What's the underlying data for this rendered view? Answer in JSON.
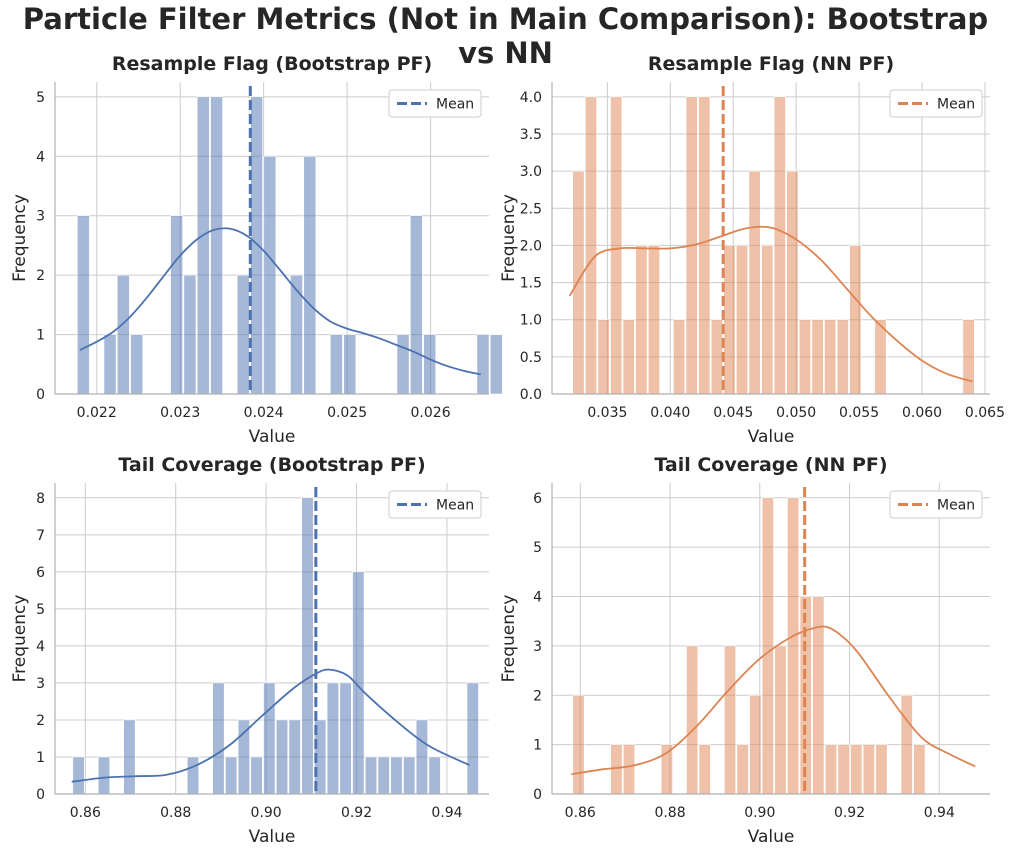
{
  "figure": {
    "title": "Particle Filter Metrics (Not in Main Comparison): Bootstrap vs NN"
  },
  "colors": {
    "blue": "#4C72B0",
    "orange": "#DD8452",
    "grid": "#cccccc",
    "axis": "#b0b0b0"
  },
  "chart_data": [
    {
      "type": "bar",
      "title": "Resample Flag (Bootstrap PF)",
      "xlabel": "Value",
      "ylabel": "Frequency",
      "color": "#4C72B0",
      "xlim": [
        0.0215,
        0.0267
      ],
      "ylim": [
        0,
        5.25
      ],
      "xticks": [
        0.022,
        0.023,
        0.024,
        0.025,
        0.026
      ],
      "xtick_labels": [
        "0.022",
        "0.023",
        "0.024",
        "0.025",
        "0.026"
      ],
      "yticks": [
        0,
        1,
        2,
        3,
        4,
        5
      ],
      "ytick_labels": [
        "0",
        "1",
        "2",
        "3",
        "4",
        "5"
      ],
      "bins": {
        "start": 0.02176,
        "width": 0.0001596,
        "counts": [
          3,
          0,
          1,
          2,
          1,
          0,
          0,
          3,
          2,
          5,
          5,
          0,
          2,
          5,
          4,
          0,
          2,
          4,
          0,
          1,
          1,
          0,
          0,
          0,
          1,
          3,
          1,
          0,
          0,
          0,
          1,
          1
        ]
      },
      "kde": {
        "x": [
          0.0218,
          0.022,
          0.0222,
          0.0224,
          0.0226,
          0.0228,
          0.023,
          0.0232,
          0.0234,
          0.0236,
          0.0238,
          0.024,
          0.0242,
          0.0244,
          0.0246,
          0.0248,
          0.025,
          0.0252,
          0.0254,
          0.0256,
          0.0258,
          0.026,
          0.0262,
          0.0264,
          0.0266
        ],
        "y": [
          0.74,
          0.88,
          1.05,
          1.3,
          1.62,
          1.98,
          2.33,
          2.6,
          2.76,
          2.78,
          2.66,
          2.41,
          2.08,
          1.74,
          1.44,
          1.22,
          1.1,
          1.02,
          0.93,
          0.82,
          0.71,
          0.58,
          0.47,
          0.39,
          0.33
        ]
      },
      "mean": 0.02384,
      "legend": {
        "label": "Mean",
        "loc": "upper right"
      }
    },
    {
      "type": "bar",
      "title": "Resample Flag (NN PF)",
      "xlabel": "Value",
      "ylabel": "Frequency",
      "color": "#DD8452",
      "xlim": [
        0.0306,
        0.0654
      ],
      "ylim": [
        0,
        4.2
      ],
      "xticks": [
        0.035,
        0.04,
        0.045,
        0.05,
        0.055,
        0.06,
        0.065
      ],
      "xtick_labels": [
        "0.035",
        "0.040",
        "0.045",
        "0.050",
        "0.055",
        "0.060",
        "0.065"
      ],
      "yticks": [
        0,
        0.5,
        1.0,
        1.5,
        2.0,
        2.5,
        3.0,
        3.5,
        4.0
      ],
      "ytick_labels": [
        "0.0",
        "0.5",
        "1.0",
        "1.5",
        "2.0",
        "2.5",
        "3.0",
        "3.5",
        "4.0"
      ],
      "bins": {
        "start": 0.0322,
        "width": 0.001,
        "counts": [
          3,
          4,
          1,
          4,
          1,
          2,
          2,
          0,
          1,
          4,
          4,
          1,
          2,
          2,
          3,
          2,
          4,
          3,
          1,
          1,
          1,
          1,
          2,
          0,
          1,
          0,
          0,
          0,
          0,
          0,
          0,
          1
        ]
      },
      "kde": {
        "x": [
          0.032,
          0.034,
          0.036,
          0.038,
          0.04,
          0.042,
          0.044,
          0.046,
          0.048,
          0.05,
          0.052,
          0.054,
          0.056,
          0.058,
          0.06,
          0.062,
          0.064
        ],
        "y": [
          1.32,
          1.85,
          1.96,
          1.96,
          1.96,
          2.01,
          2.12,
          2.23,
          2.24,
          2.08,
          1.8,
          1.42,
          1.04,
          0.72,
          0.45,
          0.27,
          0.17
        ]
      },
      "mean": 0.0442,
      "legend": {
        "label": "Mean",
        "loc": "upper right"
      }
    },
    {
      "type": "bar",
      "title": "Tail Coverage (Bootstrap PF)",
      "xlabel": "Value",
      "ylabel": "Frequency",
      "color": "#4C72B0",
      "xlim": [
        0.8533,
        0.9493
      ],
      "ylim": [
        0,
        8.4
      ],
      "xticks": [
        0.86,
        0.88,
        0.9,
        0.92,
        0.94
      ],
      "xtick_labels": [
        "0.86",
        "0.88",
        "0.90",
        "0.92",
        "0.94"
      ],
      "yticks": [
        0,
        1,
        2,
        3,
        4,
        5,
        6,
        7,
        8
      ],
      "ytick_labels": [
        "0",
        "1",
        "2",
        "3",
        "4",
        "5",
        "6",
        "7",
        "8"
      ],
      "bins": {
        "start": 0.8571,
        "width": 0.002813,
        "counts": [
          1,
          0,
          1,
          0,
          2,
          0,
          0,
          0,
          0,
          1,
          0,
          3,
          1,
          2,
          1,
          3,
          2,
          2,
          8,
          2,
          3,
          3,
          6,
          1,
          1,
          1,
          1,
          2,
          1,
          0,
          0,
          3
        ]
      },
      "kde": {
        "x": [
          0.857,
          0.864,
          0.871,
          0.878,
          0.885,
          0.892,
          0.899,
          0.906,
          0.911,
          0.914,
          0.918,
          0.922,
          0.929,
          0.936,
          0.945
        ],
        "y": [
          0.33,
          0.44,
          0.48,
          0.52,
          0.8,
          1.33,
          2.1,
          2.85,
          3.25,
          3.36,
          3.2,
          2.71,
          1.95,
          1.3,
          0.78
        ]
      },
      "mean": 0.911,
      "legend": {
        "label": "Mean",
        "loc": "upper right"
      }
    },
    {
      "type": "bar",
      "title": "Tail Coverage (NN PF)",
      "xlabel": "Value",
      "ylabel": "Frequency",
      "color": "#DD8452",
      "xlim": [
        0.8537,
        0.9513
      ],
      "ylim": [
        0,
        6.3
      ],
      "xticks": [
        0.86,
        0.88,
        0.9,
        0.92,
        0.94
      ],
      "xtick_labels": [
        "0.86",
        "0.88",
        "0.90",
        "0.92",
        "0.94"
      ],
      "yticks": [
        0,
        1,
        2,
        3,
        4,
        5,
        6
      ],
      "ytick_labels": [
        "0",
        "1",
        "2",
        "3",
        "4",
        "5",
        "6"
      ],
      "bins": {
        "start": 0.8582,
        "width": 0.002813,
        "counts": [
          2,
          0,
          0,
          1,
          1,
          0,
          0,
          1,
          0,
          3,
          1,
          0,
          3,
          1,
          2,
          6,
          3,
          6,
          4,
          4,
          1,
          1,
          1,
          1,
          1,
          0,
          2,
          1,
          0,
          0,
          0,
          0
        ]
      },
      "kde": {
        "x": [
          0.858,
          0.865,
          0.872,
          0.879,
          0.886,
          0.893,
          0.9,
          0.907,
          0.912,
          0.915,
          0.918,
          0.922,
          0.929,
          0.936,
          0.942,
          0.948
        ],
        "y": [
          0.4,
          0.5,
          0.58,
          0.82,
          1.38,
          2.1,
          2.74,
          3.18,
          3.36,
          3.38,
          3.22,
          2.85,
          1.95,
          1.15,
          0.82,
          0.56
        ]
      },
      "mean": 0.91,
      "legend": {
        "label": "Mean",
        "loc": "upper right"
      }
    }
  ]
}
